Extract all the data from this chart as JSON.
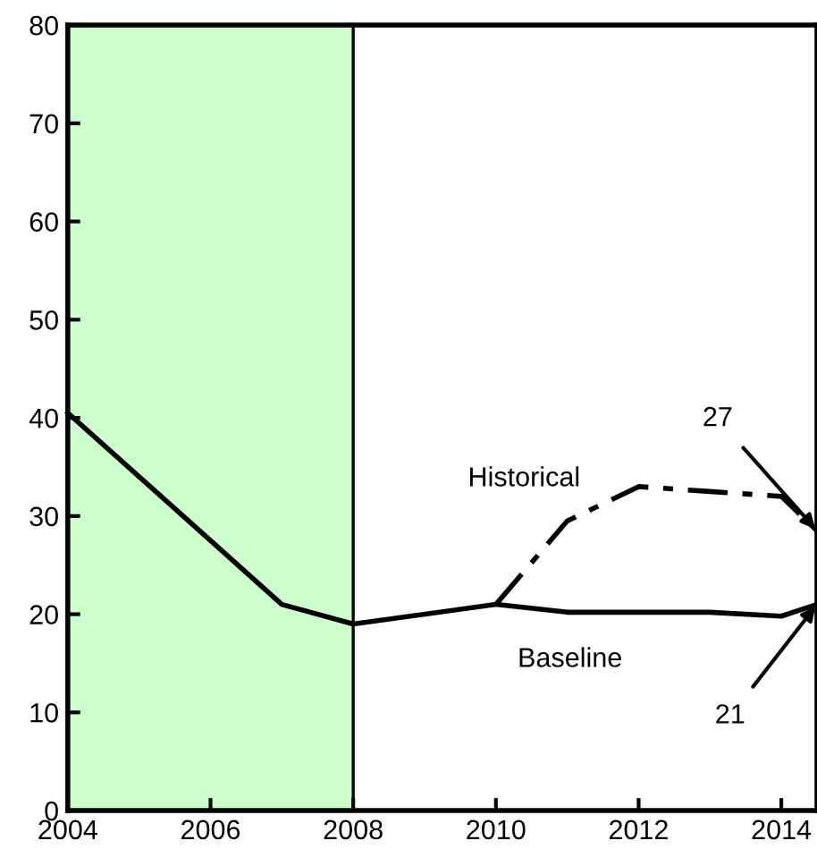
{
  "chart_data": {
    "type": "line",
    "series": [
      {
        "name": "Baseline",
        "color": "#000000",
        "line_style": "solid",
        "x": [
          2004,
          2007,
          2008,
          2010,
          2011,
          2012,
          2013,
          2014,
          2014.5
        ],
        "values": [
          40.5,
          21,
          19,
          21,
          20.2,
          20.2,
          20.2,
          19.8,
          21
        ]
      },
      {
        "name": "Historical",
        "color": "#000000",
        "line_style": "dashdot",
        "x": [
          2010,
          2011,
          2012,
          2013,
          2014,
          2014.5
        ],
        "values": [
          21,
          29.5,
          33,
          32.5,
          32,
          28.5
        ]
      }
    ],
    "xlim": [
      2004,
      2014.5
    ],
    "xticks": [
      2004,
      2006,
      2008,
      2010,
      2012,
      2014
    ],
    "ylim": [
      0,
      80
    ],
    "yticks": [
      0,
      10,
      20,
      30,
      40,
      50,
      60,
      70,
      80
    ],
    "bands": [
      {
        "axis": "x",
        "from": 2004,
        "to": 2008,
        "color": "#ccffcc"
      }
    ],
    "annotations": [
      {
        "text": "27",
        "x": 2014.5,
        "y": 28.5
      },
      {
        "text": "21",
        "x": 2014.5,
        "y": 21
      }
    ],
    "grid": false,
    "legend": false,
    "marker": "none"
  }
}
